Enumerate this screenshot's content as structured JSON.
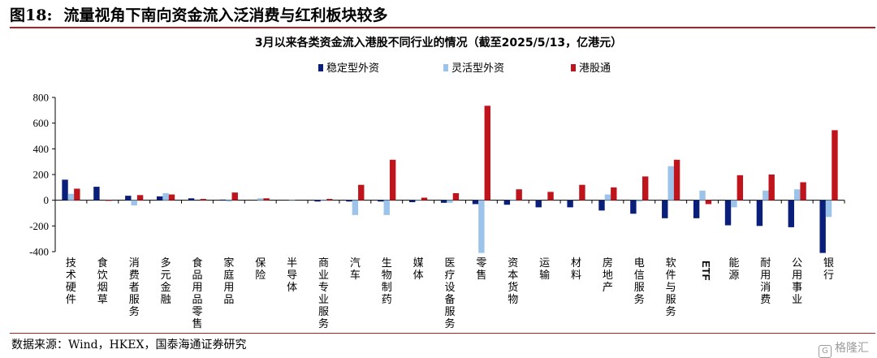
{
  "figure": {
    "number": "图18:",
    "title": "流量视角下南向资金流入泛消费与红利板块较多"
  },
  "source": "数据来源：Wind，HKEX，国泰海通证券研究",
  "watermark": "格隆汇",
  "colors": {
    "stable": "#0a1f7a",
    "flexible": "#9cc3ea",
    "connect": "#c0141c",
    "rule": "#b01f24"
  },
  "chart_data": {
    "type": "bar",
    "title": "3月以来各类资金流入港股不同行业的情况（截至2025/5/13，亿港元）",
    "xlabel": "",
    "ylabel": "",
    "ylim": [
      -400,
      800
    ],
    "yticks": [
      -400,
      -200,
      0,
      200,
      400,
      600,
      800
    ],
    "legend_position": "top",
    "categories": [
      "技术硬件",
      "食饮烟草",
      "消费者服务",
      "多元金融",
      "食品用品零售",
      "家庭用品",
      "保险",
      "半导体",
      "商业专业服务",
      "汽车",
      "生物制药",
      "媒体",
      "医疗设备服务",
      "零售",
      "资本货物",
      "运输",
      "材料",
      "房地产",
      "电信服务",
      "软件与服务",
      "ETF",
      "能源",
      "耐用消费",
      "公用事业",
      "银行"
    ],
    "series": [
      {
        "name": "稳定型外资",
        "color_key": "stable",
        "values": [
          160,
          105,
          35,
          30,
          15,
          5,
          0,
          0,
          -10,
          -10,
          -10,
          -15,
          -20,
          -30,
          -35,
          -55,
          -55,
          -80,
          -105,
          -140,
          -140,
          -195,
          -200,
          -210,
          -410
        ]
      },
      {
        "name": "灵活型外资",
        "color_key": "flexible",
        "values": [
          50,
          0,
          -40,
          55,
          0,
          -10,
          15,
          -5,
          -5,
          -115,
          -115,
          -5,
          -20,
          -410,
          -5,
          0,
          0,
          45,
          -10,
          265,
          75,
          -55,
          75,
          85,
          -130
        ]
      },
      {
        "name": "港股通",
        "color_key": "connect",
        "values": [
          90,
          -5,
          40,
          45,
          10,
          60,
          15,
          0,
          10,
          120,
          315,
          20,
          55,
          735,
          85,
          65,
          120,
          100,
          185,
          315,
          -30,
          195,
          200,
          140,
          545
        ]
      }
    ]
  }
}
